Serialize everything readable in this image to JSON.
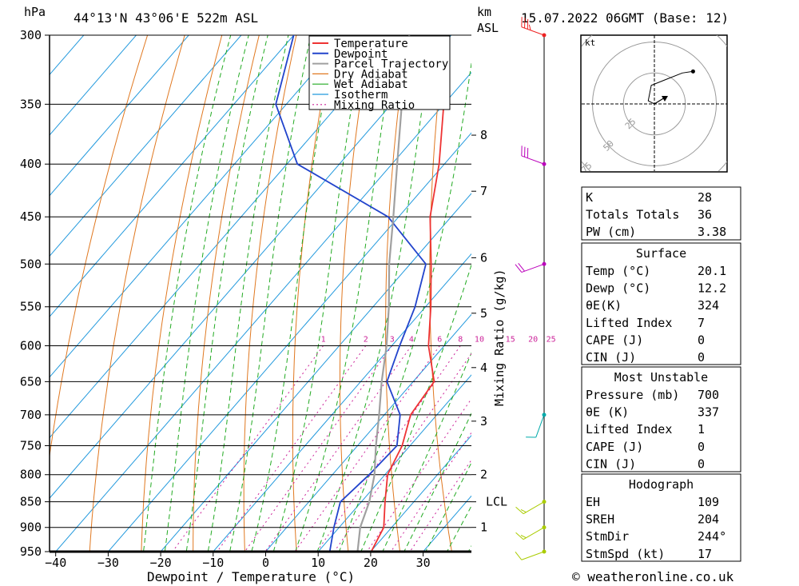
{
  "header": {
    "units_p": "hPa",
    "location": "44°13'N  43°06'E  522m  ASL",
    "units_km": "km",
    "units_asl": "ASL",
    "datetime": "15.07.2022  06GMT  (Base: 12)"
  },
  "footer": {
    "copyright": "© weatheronline.co.uk"
  },
  "colors": {
    "temperature": "#ee3333",
    "dewpoint": "#2244cc",
    "parcel": "#a0a0a0",
    "dry_adiabat": "#e07820",
    "wet_adiabat": "#22aa22",
    "isotherm": "#2299dd",
    "mixing_ratio": "#cc2299"
  },
  "chart_data": {
    "type": "line",
    "subtype": "skew-T log-p",
    "xlabel": "Dewpoint / Temperature (°C)",
    "ylabel": "hPa",
    "mixing_ratio_axis_label": "Mixing Ratio (g/kg)",
    "x_ticks": [
      -40,
      -30,
      -20,
      -10,
      0,
      10,
      20,
      30
    ],
    "pressure_levels": [
      300,
      350,
      400,
      450,
      500,
      550,
      600,
      650,
      700,
      750,
      800,
      850,
      900,
      950
    ],
    "pressure_range": [
      300,
      950
    ],
    "temperature_range": [
      -40,
      40
    ],
    "km_ticks": [
      {
        "label": "8",
        "p": 375
      },
      {
        "label": "7",
        "p": 425
      },
      {
        "label": "6",
        "p": 493
      },
      {
        "label": "5",
        "p": 558
      },
      {
        "label": "4",
        "p": 630
      },
      {
        "label": "3",
        "p": 710
      },
      {
        "label": "2",
        "p": 800
      },
      {
        "label": "LCL",
        "p": 850
      },
      {
        "label": "1",
        "p": 900
      }
    ],
    "mixing_ratio_labels": [
      "1",
      "2",
      "3",
      "4",
      "6",
      "8",
      "10",
      "15",
      "20",
      "25"
    ],
    "mixing_ratio_values": [
      1,
      2,
      3,
      4,
      6,
      8,
      10,
      15,
      20,
      25
    ],
    "legend": [
      "Temperature",
      "Dewpoint",
      "Parcel Trajectory",
      "Dry Adiabat",
      "Wet Adiabat",
      "Isotherm",
      "Mixing Ratio"
    ],
    "legend_position": "top-right",
    "series": [
      {
        "name": "Temperature",
        "points": [
          [
            950,
            20.1
          ],
          [
            900,
            18.5
          ],
          [
            850,
            14.5
          ],
          [
            800,
            10.5
          ],
          [
            750,
            8.5
          ],
          [
            700,
            5.0
          ],
          [
            650,
            4.0
          ],
          [
            600,
            -3.0
          ],
          [
            550,
            -9.0
          ],
          [
            500,
            -16.0
          ],
          [
            450,
            -24.0
          ],
          [
            400,
            -31.0
          ],
          [
            350,
            -40.0
          ],
          [
            340,
            -41.5
          ]
        ]
      },
      {
        "name": "Dewpoint",
        "points": [
          [
            950,
            12.2
          ],
          [
            900,
            9.0
          ],
          [
            850,
            6.0
          ],
          [
            800,
            7.0
          ],
          [
            750,
            7.5
          ],
          [
            700,
            3.0
          ],
          [
            650,
            -5.0
          ],
          [
            600,
            -8.5
          ],
          [
            550,
            -12.0
          ],
          [
            500,
            -17.0
          ],
          [
            450,
            -32.0
          ],
          [
            400,
            -58.0
          ],
          [
            350,
            -72.0
          ],
          [
            300,
            -80.0
          ]
        ]
      },
      {
        "name": "Parcel Trajectory",
        "points": [
          [
            950,
            17.5
          ],
          [
            900,
            14.0
          ],
          [
            850,
            11.5
          ],
          [
            800,
            8.0
          ],
          [
            750,
            3.5
          ],
          [
            700,
            -1.0
          ],
          [
            650,
            -6.0
          ],
          [
            600,
            -11.0
          ],
          [
            550,
            -17.0
          ],
          [
            500,
            -24.0
          ],
          [
            450,
            -31.0
          ],
          [
            400,
            -39.0
          ],
          [
            350,
            -48.0
          ],
          [
            300,
            -58.0
          ]
        ]
      }
    ],
    "wind_barbs": [
      {
        "p": 300,
        "dir": 290,
        "speed_kt": 35
      },
      {
        "p": 400,
        "dir": 290,
        "speed_kt": 30
      },
      {
        "p": 500,
        "dir": 250,
        "speed_kt": 20
      },
      {
        "p": 700,
        "dir": 200,
        "speed_kt": 10
      },
      {
        "p": 850,
        "dir": 240,
        "speed_kt": 15
      },
      {
        "p": 900,
        "dir": 240,
        "speed_kt": 15
      },
      {
        "p": 950,
        "dir": 250,
        "speed_kt": 12
      }
    ],
    "hodograph": {
      "unit": "kt",
      "ring_labels": [
        "25",
        "50",
        "75"
      ],
      "points": [
        [
          0,
          0
        ],
        [
          -4,
          2
        ],
        [
          -3,
          7
        ],
        [
          -2,
          12
        ],
        [
          8,
          16
        ],
        [
          18,
          20
        ],
        [
          25,
          21
        ]
      ],
      "storm_motion": {
        "dir": 244,
        "speed_kt": 17
      }
    }
  },
  "indices": {
    "general": [
      {
        "label": "K",
        "value": "28"
      },
      {
        "label": "Totals Totals",
        "value": "36"
      },
      {
        "label": "PW (cm)",
        "value": "3.38"
      }
    ],
    "surface_title": "Surface",
    "surface": [
      {
        "label": "Temp (°C)",
        "value": "20.1"
      },
      {
        "label": "Dewp (°C)",
        "value": "12.2"
      },
      {
        "label": "θE(K)",
        "value": "324"
      },
      {
        "label": "Lifted Index",
        "value": "7"
      },
      {
        "label": "CAPE (J)",
        "value": "0"
      },
      {
        "label": "CIN (J)",
        "value": "0"
      }
    ],
    "unstable_title": "Most Unstable",
    "unstable": [
      {
        "label": "Pressure (mb)",
        "value": "700"
      },
      {
        "label": "θE (K)",
        "value": "337"
      },
      {
        "label": "Lifted Index",
        "value": "1"
      },
      {
        "label": "CAPE (J)",
        "value": "0"
      },
      {
        "label": "CIN (J)",
        "value": "0"
      }
    ],
    "hodograph_title": "Hodograph",
    "hodograph": [
      {
        "label": "EH",
        "value": "109"
      },
      {
        "label": "SREH",
        "value": "204"
      },
      {
        "label": "StmDir",
        "value": "244°"
      },
      {
        "label": "StmSpd (kt)",
        "value": "17"
      }
    ]
  }
}
